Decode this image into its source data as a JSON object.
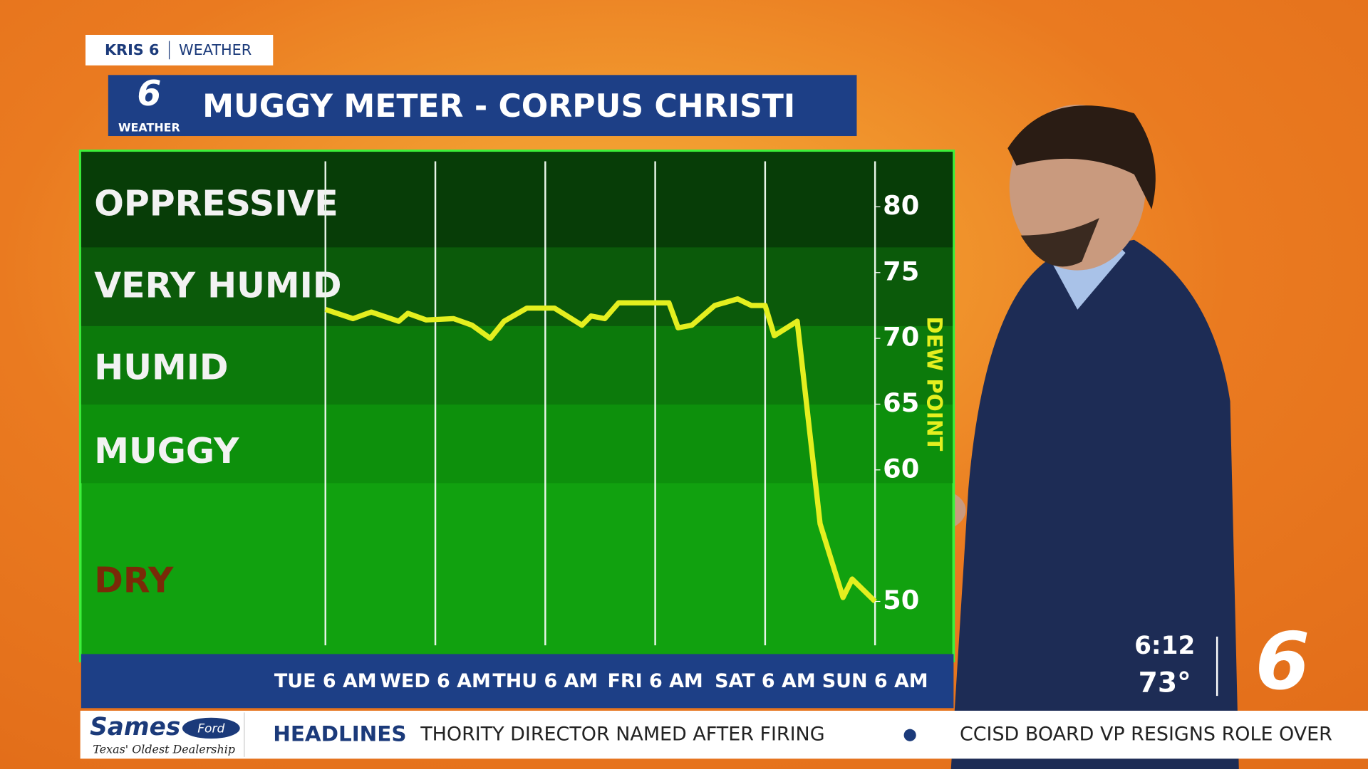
{
  "brand": {
    "station": "KRIS 6",
    "section": "WEATHER",
    "logo_number": "6",
    "logo_word": "WEATHER"
  },
  "chart_data": {
    "type": "line",
    "title": "MUGGY METER - CORPUS CHRISTI",
    "y_label": "DEW POINT",
    "zones": [
      "OPPRESSIVE",
      "VERY HUMID",
      "HUMID",
      "MUGGY",
      "DRY"
    ],
    "x": [
      0,
      6,
      10,
      16,
      18,
      22,
      28,
      32,
      36,
      39,
      44,
      50,
      56,
      58,
      61,
      64,
      75,
      77,
      80,
      85,
      90,
      93,
      96,
      98,
      103,
      108,
      113,
      115,
      120
    ],
    "values": [
      72.2,
      71.5,
      72,
      71.3,
      71.9,
      71.4,
      71.5,
      71,
      70,
      71.3,
      72.3,
      72.3,
      71,
      71.7,
      71.5,
      72.7,
      72.7,
      70.8,
      71,
      72.5,
      73,
      72.5,
      72.5,
      70.2,
      71.3,
      55.9,
      50.3,
      51.7,
      50
    ],
    "color": "#e4ef1f",
    "xlim": [
      0,
      120
    ],
    "xticks": [
      {
        "value": 0,
        "label": "TUE 6 AM"
      },
      {
        "value": 24,
        "label": "WED 6 AM"
      },
      {
        "value": 48,
        "label": "THU 6 AM"
      },
      {
        "value": 72,
        "label": "FRI 6 AM"
      },
      {
        "value": 96,
        "label": "SAT 6 AM"
      },
      {
        "value": 120,
        "label": "SUN 6 AM"
      }
    ],
    "ylim": [
      46,
      82
    ],
    "yticks": [
      50,
      60,
      65,
      70,
      75,
      80
    ]
  },
  "status": {
    "time": "6:12",
    "temp": "73°",
    "channel": "6"
  },
  "ticker": {
    "sponsor": "Sames",
    "sponsor_brand": "Ford",
    "sponsor_tagline": "Texas' Oldest Dealership",
    "label": "HEADLINES",
    "items": [
      "THORITY DIRECTOR NAMED AFTER FIRING",
      "CCISD BOARD VP RESIGNS ROLE OVER"
    ]
  }
}
